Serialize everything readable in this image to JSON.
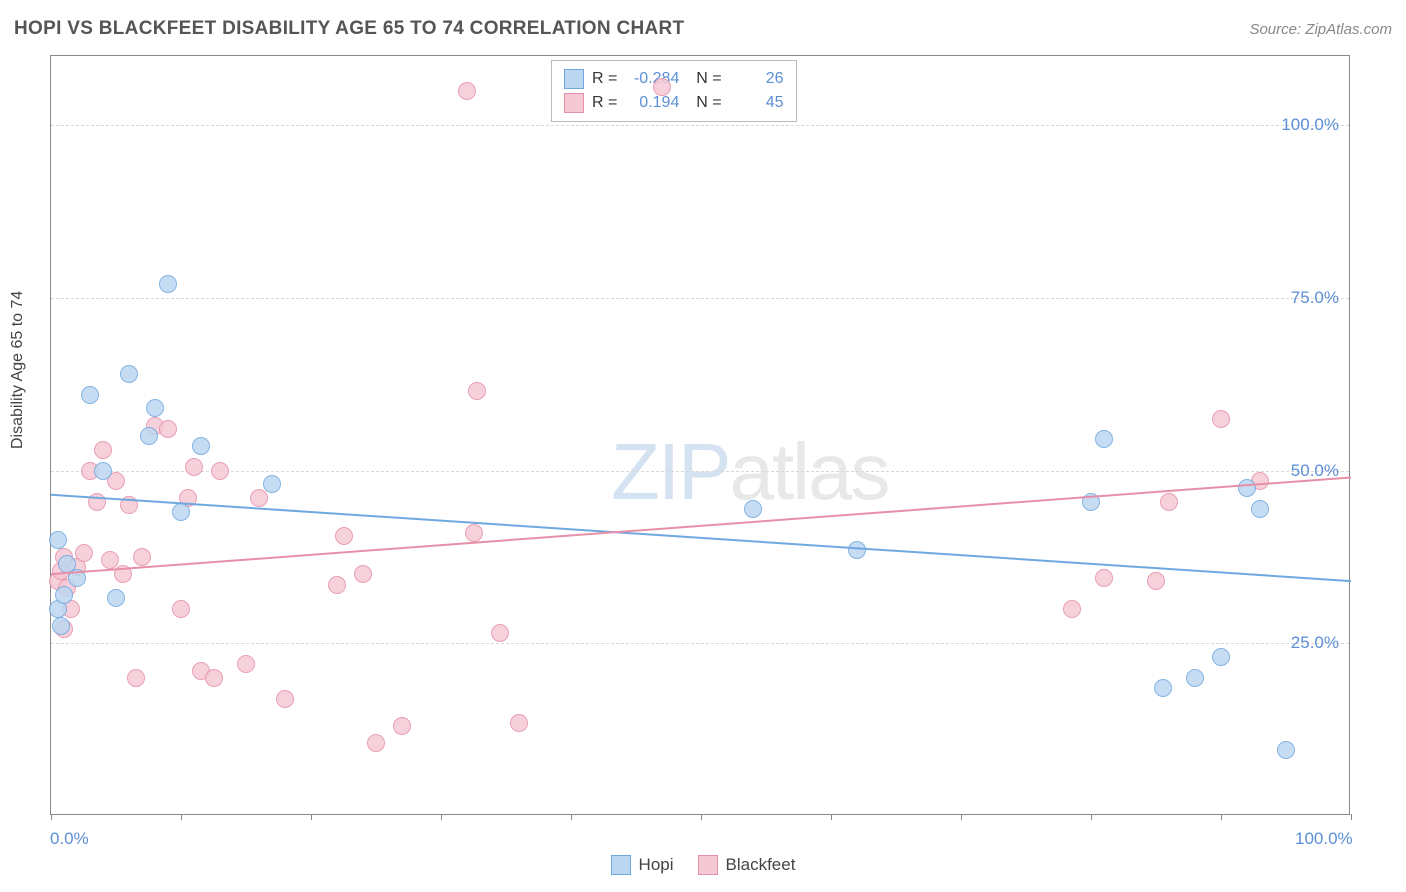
{
  "title": "HOPI VS BLACKFEET DISABILITY AGE 65 TO 74 CORRELATION CHART",
  "source": "Source: ZipAtlas.com",
  "yaxis_label": "Disability Age 65 to 74",
  "chart": {
    "type": "scatter",
    "xlim": [
      0,
      100
    ],
    "ylim": [
      0,
      110
    ],
    "y_gridlines": [
      25,
      50,
      75,
      100
    ],
    "y_tick_labels": [
      "25.0%",
      "50.0%",
      "75.0%",
      "100.0%"
    ],
    "x_ticks": [
      0,
      10,
      20,
      30,
      40,
      50,
      60,
      70,
      80,
      90,
      100
    ],
    "x_tick_labels_at": {
      "0": "0.0%",
      "100": "100.0%"
    },
    "background_color": "#ffffff",
    "grid_color": "#d8d8d8",
    "axis_color": "#888888",
    "marker_radius": 9,
    "marker_stroke_width": 1.5,
    "marker_fill_opacity": 0.35,
    "trend_line_width": 2
  },
  "series": {
    "hopi": {
      "label": "Hopi",
      "color_stroke": "#6fa8e0",
      "color_fill": "#bcd6f0",
      "R": "-0.284",
      "N": "26",
      "points": [
        [
          0.5,
          40.0
        ],
        [
          0.5,
          30.0
        ],
        [
          0.8,
          27.5
        ],
        [
          1.0,
          32.0
        ],
        [
          1.2,
          36.5
        ],
        [
          2.0,
          34.5
        ],
        [
          3.0,
          61.0
        ],
        [
          4.0,
          50.0
        ],
        [
          5.0,
          31.5
        ],
        [
          6.0,
          64.0
        ],
        [
          7.5,
          55.0
        ],
        [
          8.0,
          59.0
        ],
        [
          9.0,
          77.0
        ],
        [
          10.0,
          44.0
        ],
        [
          11.5,
          53.5
        ],
        [
          17.0,
          48.0
        ],
        [
          54.0,
          44.5
        ],
        [
          62.0,
          38.5
        ],
        [
          80.0,
          45.5
        ],
        [
          81.0,
          54.5
        ],
        [
          85.5,
          18.5
        ],
        [
          88.0,
          20.0
        ],
        [
          90.0,
          23.0
        ],
        [
          92.0,
          47.5
        ],
        [
          93.0,
          44.5
        ],
        [
          95.0,
          9.5
        ]
      ],
      "trend": {
        "y_at_x0": 46.5,
        "y_at_x100": 34.0
      }
    },
    "blackfeet": {
      "label": "Blackfeet",
      "color_stroke": "#e68fa8",
      "color_fill": "#f5c8d4",
      "R": "0.194",
      "N": "45",
      "points": [
        [
          0.5,
          34.0
        ],
        [
          0.8,
          35.5
        ],
        [
          1.0,
          37.5
        ],
        [
          1.0,
          27.0
        ],
        [
          1.2,
          33.0
        ],
        [
          1.5,
          30.0
        ],
        [
          2.0,
          36.0
        ],
        [
          2.5,
          38.0
        ],
        [
          3.0,
          50.0
        ],
        [
          3.5,
          45.5
        ],
        [
          4.0,
          53.0
        ],
        [
          4.5,
          37.0
        ],
        [
          5.0,
          48.5
        ],
        [
          5.5,
          35.0
        ],
        [
          6.0,
          45.0
        ],
        [
          6.5,
          20.0
        ],
        [
          7.0,
          37.5
        ],
        [
          8.0,
          56.5
        ],
        [
          9.0,
          56.0
        ],
        [
          10.0,
          30.0
        ],
        [
          10.5,
          46.0
        ],
        [
          11.0,
          50.5
        ],
        [
          11.5,
          21.0
        ],
        [
          12.5,
          20.0
        ],
        [
          13.0,
          50.0
        ],
        [
          15.0,
          22.0
        ],
        [
          16.0,
          46.0
        ],
        [
          18.0,
          17.0
        ],
        [
          22.0,
          33.5
        ],
        [
          22.5,
          40.5
        ],
        [
          24.0,
          35.0
        ],
        [
          25.0,
          10.5
        ],
        [
          27.0,
          13.0
        ],
        [
          32.0,
          105.0
        ],
        [
          32.5,
          41.0
        ],
        [
          32.8,
          61.5
        ],
        [
          34.5,
          26.5
        ],
        [
          36.0,
          13.5
        ],
        [
          47.0,
          105.5
        ],
        [
          78.5,
          30.0
        ],
        [
          81.0,
          34.5
        ],
        [
          85.0,
          34.0
        ],
        [
          86.0,
          45.5
        ],
        [
          90.0,
          57.5
        ],
        [
          93.0,
          48.5
        ]
      ],
      "trend": {
        "y_at_x0": 35.0,
        "y_at_x100": 49.0
      }
    }
  },
  "legend_bottom": [
    {
      "label": "Hopi",
      "stroke": "#6fa8e0",
      "fill": "#bcd6f0"
    },
    {
      "label": "Blackfeet",
      "stroke": "#e68fa8",
      "fill": "#f5c8d4"
    }
  ],
  "watermark": {
    "zip": "ZIP",
    "atlas": "atlas"
  }
}
